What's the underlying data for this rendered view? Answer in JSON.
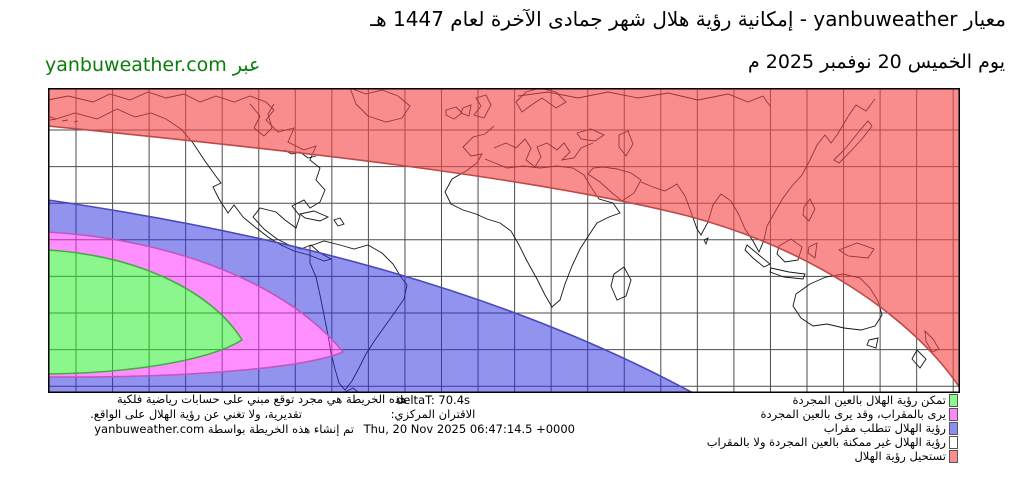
{
  "header": {
    "title": "معيار yanbuweather - إمكانية رؤية هلال شهر جمادى الآخرة لعام 1447 هـ",
    "date_line": "يوم الخميس 20 نوفمبر 2025 م",
    "via_label": "عبر yanbuweather.com",
    "brand_color": "#0b7d0b"
  },
  "footer": {
    "disclaimer_line1": "هذه الخريطة هي مجرد توقع مبني على حسابات رياضية فلكية",
    "disclaimer_line2": "تقديرية، ولا تغني عن رؤية الهلال على الواقع.",
    "created_line": "تم إنشاء هذه الخريطة بواسطة yanbuweather.com",
    "delta_t": "deltaT: 70.4s",
    "conjunction_label": "الاقتران المركزي:",
    "conjunction_time": "Thu, 20 Nov 2025 06:47:14.5 +0000"
  },
  "legend": {
    "items": [
      {
        "label": "تمكن رؤية الهلال بالعين المجردة",
        "color": "#8cf98c"
      },
      {
        "label": "يرى بالمقراب، وقد يرى بالعين المجردة",
        "color": "#fd87fd"
      },
      {
        "label": "رؤية الهلال تتطلب مقراب",
        "color": "#8d8df1"
      },
      {
        "label": "رؤية الهلال غير ممكنة بالعين المجردة ولا بالمقراب",
        "color": "#ffffff"
      },
      {
        "label": "تستحيل رؤية الهلال",
        "color": "#fa8d8d"
      }
    ]
  },
  "map": {
    "grid_color": "#4d4d4d",
    "coast_color": "#141414",
    "zones": [
      {
        "id": "impossible",
        "fill": "#f64545",
        "opacity": 0.62,
        "edge": "#bd4a4a"
      },
      {
        "id": "telescope-only",
        "fill": "#2e2ee0",
        "opacity": 0.52,
        "edge": "#4a4abd"
      },
      {
        "id": "telescope-maybe",
        "fill": "#ff2bff",
        "opacity": 0.53,
        "edge": "#c455c0"
      },
      {
        "id": "naked-eye",
        "fill": "#2bef2b",
        "opacity": 0.55,
        "edge": "#3fae3f"
      }
    ]
  }
}
